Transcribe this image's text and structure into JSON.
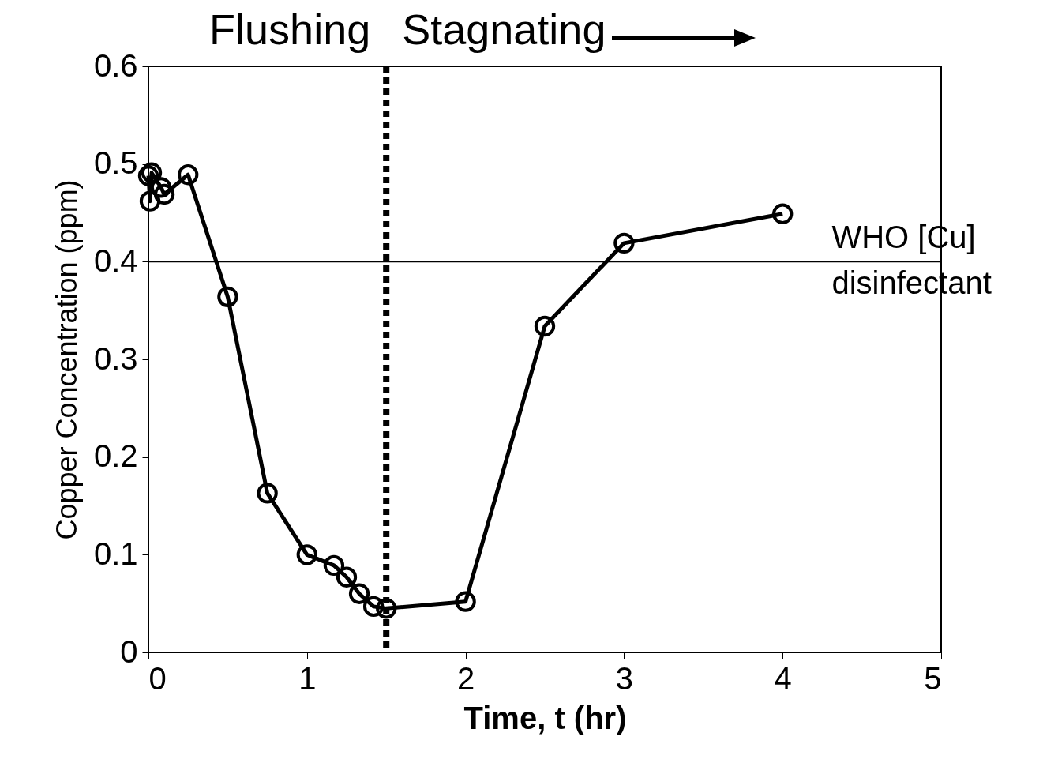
{
  "chart_data": {
    "type": "line",
    "xlabel": "Time, t (hr)",
    "ylabel": "Copper Concentration (ppm)",
    "x": [
      0,
      0.01,
      0.02,
      0.08,
      0.1,
      0.25,
      0.5,
      0.75,
      1.0,
      1.17,
      1.25,
      1.33,
      1.42,
      1.5,
      2.0,
      2.5,
      3.0,
      4.0
    ],
    "series": [
      {
        "color": "#000000",
        "values": [
          0.488,
          0.462,
          0.491,
          0.476,
          0.469,
          0.489,
          0.364,
          0.163,
          0.1,
          0.089,
          0.077,
          0.06,
          0.047,
          0.045,
          0.052,
          0.334,
          0.419,
          0.449
        ]
      }
    ],
    "xlim": [
      0,
      5
    ],
    "xticks": [
      0,
      1,
      2,
      3,
      4,
      5
    ],
    "ylim": [
      0,
      0.6
    ],
    "yticks": [
      0,
      0.1,
      0.2,
      0.3,
      0.4,
      0.5,
      0.6
    ],
    "marker": "circle",
    "line_style": "solid",
    "grid": false,
    "ref_lines": [
      {
        "axis": "y",
        "value": 0.4,
        "label": "WHO [Cu]\ndisinfectant",
        "color": "#000000",
        "line_style": "solid"
      },
      {
        "axis": "x",
        "value": 1.5,
        "color": "#000000",
        "line_style": "dotted"
      }
    ],
    "annotations": [
      "Flushing",
      "Stagnating"
    ]
  }
}
